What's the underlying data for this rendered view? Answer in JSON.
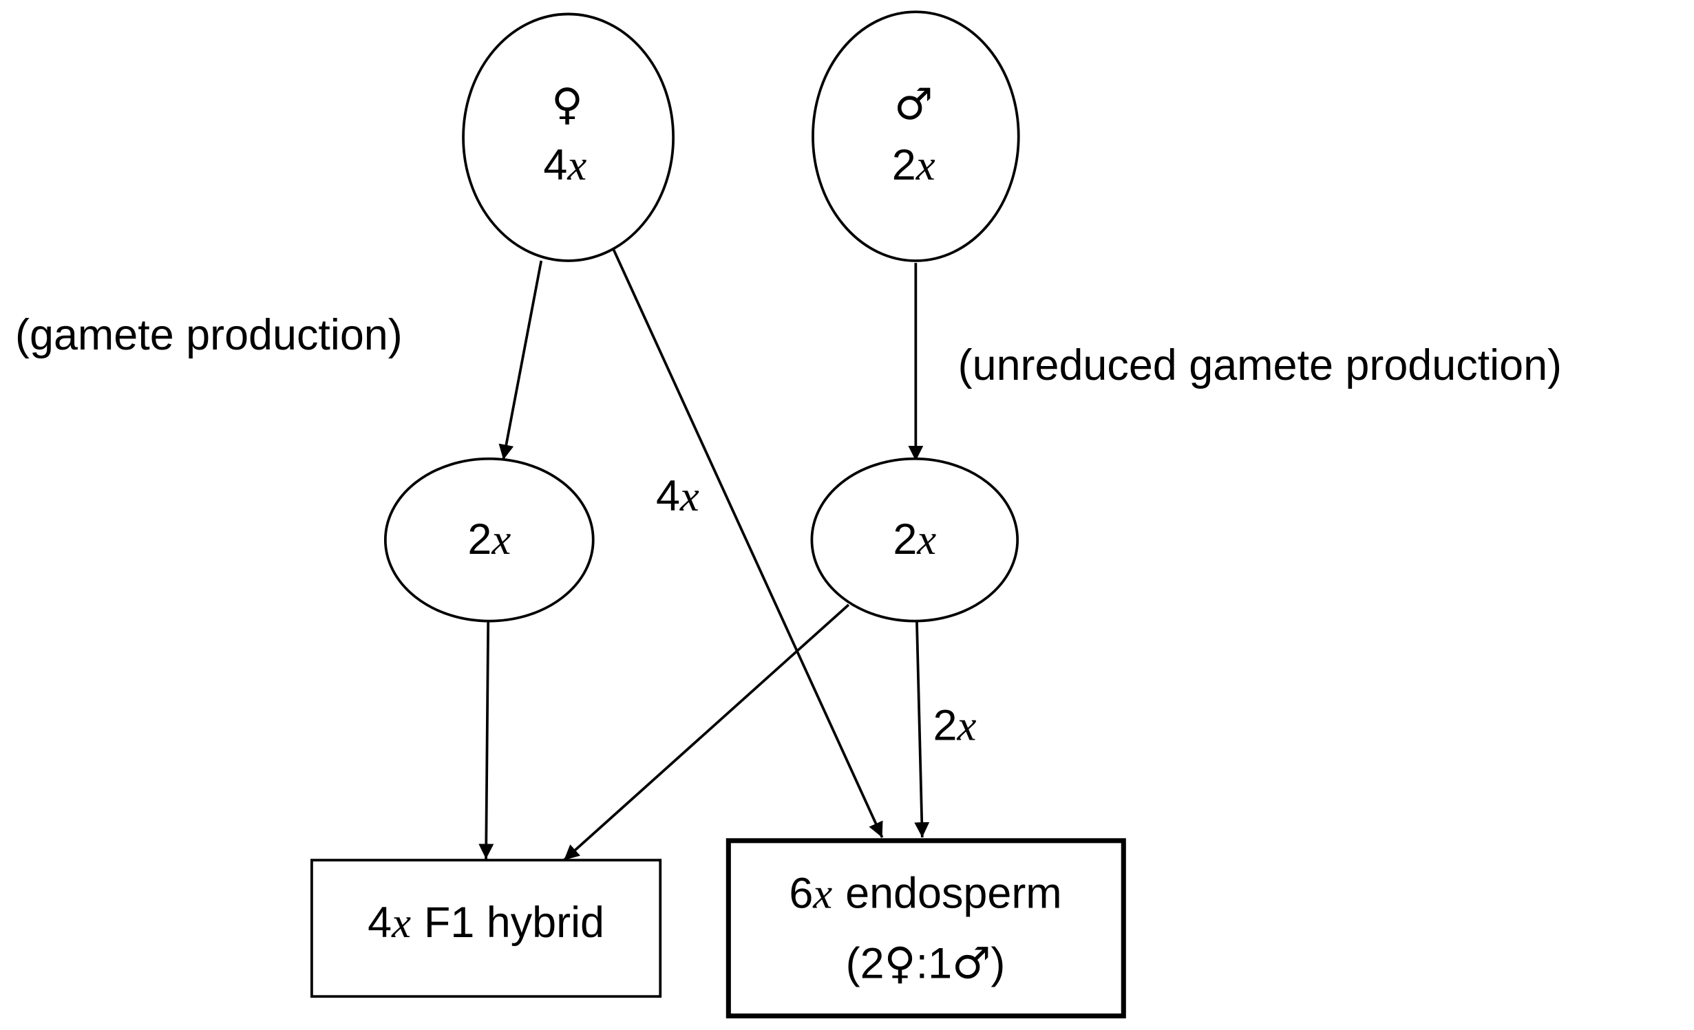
{
  "diagram": {
    "nodes": {
      "female_parent": {
        "symbol": "♀",
        "num": "4",
        "var": "x"
      },
      "male_parent": {
        "symbol": "♂",
        "num": "2",
        "var": "x"
      },
      "female_gamete": {
        "num": "2",
        "var": "x"
      },
      "male_gamete": {
        "num": "2",
        "var": "x"
      },
      "f1_hybrid": {
        "num": "4",
        "var": "x",
        "text": "F1 hybrid"
      },
      "endosperm": {
        "num": "6",
        "var": "x",
        "text": "endosperm",
        "ratio_open": "(2",
        "ratio_female": "♀",
        "ratio_mid": ":1",
        "ratio_male": "♂",
        "ratio_close": ")"
      }
    },
    "edge_labels": {
      "gamete_production": "(gamete production)",
      "unreduced_gamete_production": "(unreduced gamete production)",
      "female_to_endosperm": {
        "num": "4",
        "var": "x"
      },
      "male_gamete_to_endosperm": {
        "num": "2",
        "var": "x"
      }
    }
  }
}
